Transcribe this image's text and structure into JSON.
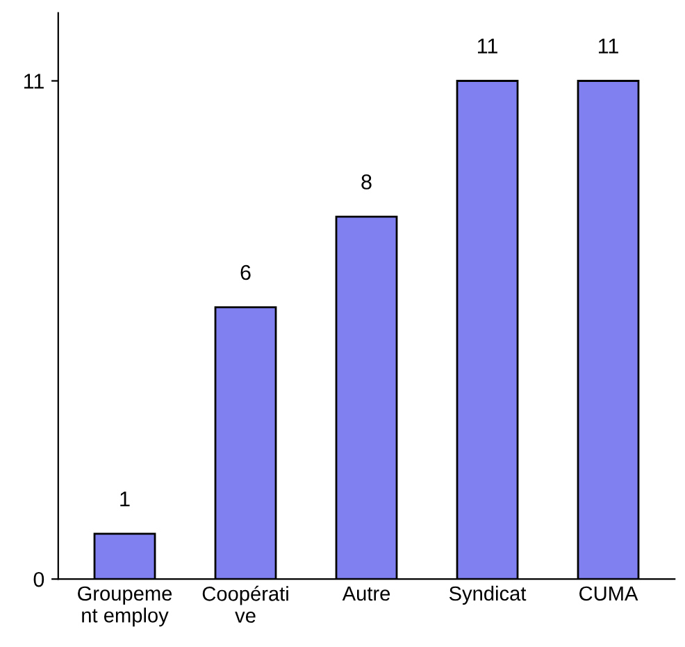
{
  "chart_data": {
    "type": "bar",
    "categories": [
      "Groupeme\nnt employ",
      "Coopérati\nve",
      "Autre",
      "Syndicat",
      "CUMA"
    ],
    "values": [
      1,
      6,
      8,
      11,
      11
    ],
    "color": "#8080f0",
    "ylim": [
      0,
      12.5
    ],
    "yticks": [
      0,
      11
    ],
    "data_labels": true,
    "grid": false,
    "legend": false
  }
}
